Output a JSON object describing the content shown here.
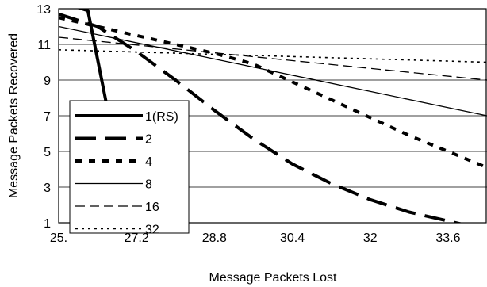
{
  "chart_data": {
    "type": "line",
    "xlabel": "Message Packets Lost",
    "ylabel": "Message Packets Recovered",
    "xlim": [
      25.6,
      34.4
    ],
    "ylim": [
      1,
      13
    ],
    "x_ticks": [
      "25.",
      "27.2",
      "28.8",
      "30.4",
      "32",
      "33.6"
    ],
    "x_tick_values": [
      25.6,
      27.2,
      28.8,
      30.4,
      32,
      33.6
    ],
    "y_ticks": [
      "1",
      "3",
      "5",
      "7",
      "9",
      "11",
      "13"
    ],
    "y_tick_values": [
      1,
      3,
      5,
      7,
      9,
      11,
      13
    ],
    "grid": "horizontal",
    "legend_position": "bottom-left, inside plot",
    "series": [
      {
        "name": "1(RS)",
        "style": "solid-thick",
        "x": [
          25.6,
          26.2,
          26.6
        ],
        "y": [
          13.4,
          12.9,
          7.4
        ]
      },
      {
        "name": "2",
        "style": "long-dash-thick",
        "x": [
          25.6,
          26.4,
          27.2,
          28.0,
          28.8,
          29.6,
          30.4,
          31.2,
          32.0,
          32.8,
          33.6,
          34.4
        ],
        "y": [
          12.7,
          12.0,
          10.6,
          9.0,
          7.3,
          5.7,
          4.3,
          3.2,
          2.3,
          1.6,
          1.1,
          0.6
        ]
      },
      {
        "name": "4",
        "style": "dotted-thick",
        "x": [
          25.6,
          26.4,
          27.2,
          28.0,
          28.8,
          29.6,
          30.4,
          31.2,
          32.0,
          32.8,
          33.6,
          34.4
        ],
        "y": [
          12.5,
          12.0,
          11.5,
          11.0,
          10.5,
          9.9,
          8.9,
          7.9,
          6.9,
          5.9,
          5.0,
          4.1
        ]
      },
      {
        "name": "8",
        "style": "solid-thin",
        "x": [
          25.6,
          34.4
        ],
        "y": [
          12.0,
          7.0
        ]
      },
      {
        "name": "16",
        "style": "dash-thin",
        "x": [
          25.6,
          34.4
        ],
        "y": [
          11.4,
          9.0
        ]
      },
      {
        "name": "32",
        "style": "dot-thin",
        "x": [
          25.6,
          34.4
        ],
        "y": [
          10.7,
          10.0
        ]
      }
    ]
  }
}
